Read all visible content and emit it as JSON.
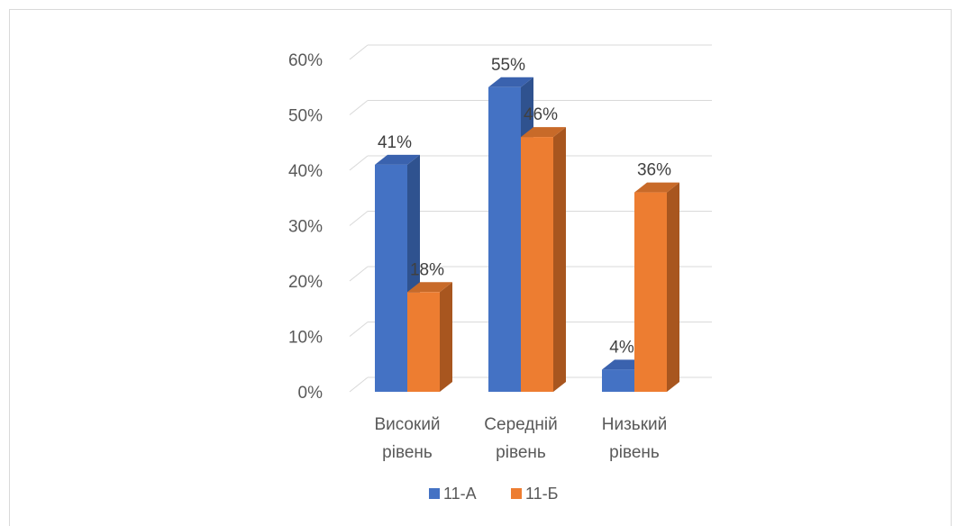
{
  "chart_data": {
    "type": "bar",
    "style": "3d-clustered-column",
    "categories": [
      [
        "Високий",
        "рівень"
      ],
      [
        "Середній",
        "рівень"
      ],
      [
        "Низький",
        "рівень"
      ]
    ],
    "series": [
      {
        "name": "11-А",
        "values": [
          41,
          55,
          4
        ],
        "labels": [
          "41%",
          "55%",
          "4%"
        ],
        "color": "#4472C4",
        "side_color": "#2F528F",
        "top_color": "#3A62AE"
      },
      {
        "name": "11-Б",
        "values": [
          18,
          46,
          36
        ],
        "labels": [
          "18%",
          "46%",
          "36%"
        ],
        "color": "#ED7D31",
        "side_color": "#A8561F",
        "top_color": "#C86A29"
      }
    ],
    "y_ticks": [
      "0%",
      "10%",
      "20%",
      "30%",
      "40%",
      "50%",
      "60%"
    ],
    "ylim": [
      0,
      60
    ],
    "grid": true,
    "legend_position": "bottom"
  }
}
